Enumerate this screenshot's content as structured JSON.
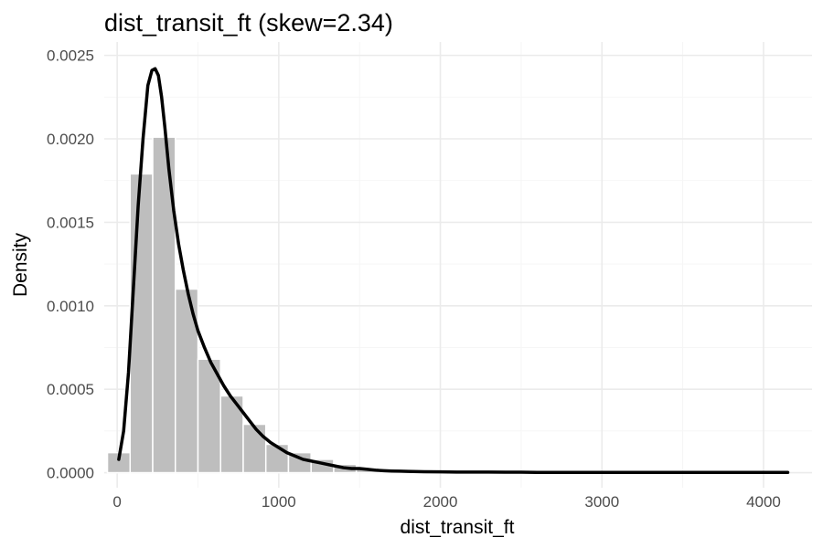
{
  "chart_data": {
    "type": "histogram",
    "title": "dist_transit_ft (skew=2.34)",
    "xlabel": "dist_transit_ft",
    "ylabel": "Density",
    "xlim": [
      -80,
      4300
    ],
    "ylim": [
      -9e-05,
      0.00258
    ],
    "x_ticks": [
      0,
      1000,
      2000,
      3000,
      4000
    ],
    "x_tick_labels": [
      "0",
      "1000",
      "2000",
      "3000",
      "4000"
    ],
    "y_ticks": [
      0,
      0.0005,
      0.001,
      0.0015,
      0.002,
      0.0025
    ],
    "y_tick_labels": [
      "0.0000",
      "0.0005",
      "0.0010",
      "0.0015",
      "0.0020",
      "0.0025"
    ],
    "bin_width": 140,
    "bins": [
      {
        "x0": -60,
        "x1": 80,
        "density": 0.00012
      },
      {
        "x0": 80,
        "x1": 220,
        "density": 0.00179
      },
      {
        "x0": 220,
        "x1": 360,
        "density": 0.00201
      },
      {
        "x0": 360,
        "x1": 500,
        "density": 0.0011
      },
      {
        "x0": 500,
        "x1": 640,
        "density": 0.00068
      },
      {
        "x0": 640,
        "x1": 780,
        "density": 0.00046
      },
      {
        "x0": 780,
        "x1": 920,
        "density": 0.00029
      },
      {
        "x0": 920,
        "x1": 1060,
        "density": 0.00017
      },
      {
        "x0": 1060,
        "x1": 1200,
        "density": 0.00012
      },
      {
        "x0": 1200,
        "x1": 1340,
        "density": 8e-05
      },
      {
        "x0": 1340,
        "x1": 1480,
        "density": 5e-05
      },
      {
        "x0": 1480,
        "x1": 1620,
        "density": 3e-05
      },
      {
        "x0": 1620,
        "x1": 1760,
        "density": 2e-05
      },
      {
        "x0": 1760,
        "x1": 1900,
        "density": 1e-05
      },
      {
        "x0": 1900,
        "x1": 2040,
        "density": 1e-05
      },
      {
        "x0": 2040,
        "x1": 2180,
        "density": 1e-05
      },
      {
        "x0": 2180,
        "x1": 2320,
        "density": 5e-06
      },
      {
        "x0": 2320,
        "x1": 2460,
        "density": 5e-06
      }
    ],
    "density_curve": {
      "x": [
        10,
        40,
        70,
        100,
        130,
        160,
        190,
        215,
        235,
        255,
        275,
        295,
        320,
        350,
        380,
        410,
        440,
        470,
        500,
        540,
        580,
        620,
        660,
        700,
        740,
        780,
        820,
        860,
        900,
        950,
        1000,
        1050,
        1100,
        1150,
        1200,
        1250,
        1300,
        1350,
        1400,
        1450,
        1500,
        1550,
        1600,
        1650,
        1700,
        1750,
        1800,
        1900,
        2000,
        2100,
        2200,
        2300,
        2400,
        2500,
        2600,
        2700,
        2800,
        3000,
        3200,
        3400,
        3600,
        3800,
        4000,
        4150
      ],
      "y": [
        8e-05,
        0.00025,
        0.0006,
        0.0011,
        0.0016,
        0.002,
        0.00232,
        0.00241,
        0.00242,
        0.00238,
        0.00225,
        0.00207,
        0.00182,
        0.00157,
        0.00137,
        0.00121,
        0.00107,
        0.00095,
        0.00085,
        0.00075,
        0.00066,
        0.00059,
        0.00052,
        0.00046,
        0.00041,
        0.00036,
        0.00031,
        0.00026,
        0.00022,
        0.00018,
        0.00015,
        0.00012,
        0.0001,
        8e-05,
        7e-05,
        6e-05,
        5e-05,
        4e-05,
        3e-05,
        2.5e-05,
        2.5e-05,
        2e-05,
        1.5e-05,
        1.2e-05,
        1e-05,
        9e-06,
        8e-06,
        6e-06,
        5e-06,
        4e-06,
        4e-06,
        4e-06,
        3e-06,
        3e-06,
        2e-06,
        2e-06,
        2e-06,
        2e-06,
        2e-06,
        2e-06,
        2e-06,
        2e-06,
        2e-06,
        2e-06
      ]
    },
    "grid": true,
    "legend": "none"
  }
}
